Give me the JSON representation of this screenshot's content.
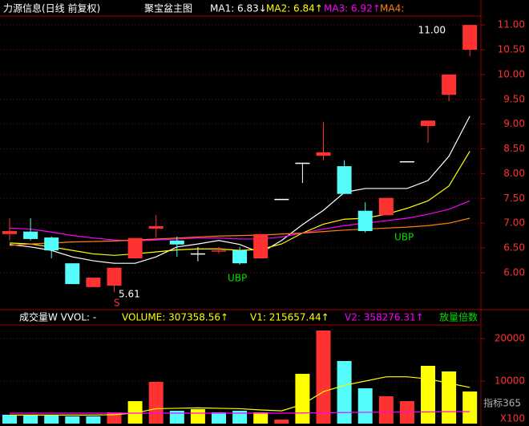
{
  "chart_data": [
    {
      "type": "candlestick",
      "title": "力源信息(日线 前复权)",
      "subtitle": "聚宝盆主图",
      "up_color": "#ff3232",
      "down_color": "#54fcfc",
      "flat_color": "#ffffff",
      "open": [
        6.78,
        6.83,
        6.71,
        6.19,
        5.71,
        5.74,
        6.29,
        6.89,
        6.65,
        6.39,
        6.44,
        6.45,
        6.29,
        7.49,
        8.22,
        8.36,
        8.15,
        7.25,
        7.16,
        8.25,
        8.96,
        9.59,
        10.5
      ],
      "high": [
        7.1,
        7.1,
        6.73,
        6.19,
        5.9,
        6.1,
        6.7,
        7.16,
        6.73,
        6.52,
        6.52,
        6.52,
        6.78,
        7.49,
        8.22,
        9.04,
        8.27,
        7.42,
        7.51,
        8.25,
        9.07,
        10.0,
        11.0
      ],
      "low": [
        6.65,
        6.65,
        6.29,
        5.77,
        5.71,
        5.61,
        6.29,
        6.71,
        6.32,
        6.23,
        6.39,
        6.16,
        6.29,
        7.49,
        7.81,
        8.27,
        7.59,
        6.81,
        7.16,
        8.25,
        8.62,
        9.46,
        10.37
      ],
      "close": [
        6.84,
        6.68,
        6.45,
        5.77,
        5.9,
        6.1,
        6.7,
        6.94,
        6.57,
        6.39,
        6.45,
        6.19,
        6.78,
        7.49,
        8.22,
        8.43,
        7.59,
        6.84,
        7.51,
        8.25,
        9.07,
        10.0,
        11.0
      ],
      "series": [
        {
          "name": "MA1: 6.83↓",
          "color": "#ffffff",
          "values": [
            6.57,
            6.52,
            6.45,
            6.32,
            6.24,
            6.19,
            6.19,
            6.32,
            6.52,
            6.58,
            6.65,
            6.57,
            6.4,
            6.65,
            6.97,
            7.26,
            7.62,
            7.7,
            7.7,
            7.7,
            7.86,
            8.35,
            9.16
          ]
        },
        {
          "name": "MA2: 6.84↑",
          "color": "#ffff00",
          "values": [
            6.6,
            6.58,
            6.52,
            6.45,
            6.38,
            6.35,
            6.38,
            6.42,
            6.46,
            6.48,
            6.48,
            6.45,
            6.47,
            6.58,
            6.8,
            6.98,
            7.08,
            7.1,
            7.18,
            7.3,
            7.45,
            7.75,
            8.45
          ]
        },
        {
          "name": "MA3: 6.92↑",
          "color": "#ff00ff",
          "values": [
            6.9,
            6.88,
            6.82,
            6.75,
            6.7,
            6.66,
            6.64,
            6.66,
            6.68,
            6.7,
            6.7,
            6.68,
            6.68,
            6.72,
            6.8,
            6.88,
            6.95,
            7.0,
            7.05,
            7.1,
            7.18,
            7.28,
            7.45
          ]
        },
        {
          "name": "MA4:",
          "color": "#ff8000",
          "values": [
            6.55,
            6.58,
            6.6,
            6.62,
            6.63,
            6.64,
            6.66,
            6.68,
            6.7,
            6.72,
            6.74,
            6.75,
            6.76,
            6.78,
            6.8,
            6.83,
            6.86,
            6.88,
            6.9,
            6.92,
            6.95,
            7.0,
            7.1
          ]
        }
      ],
      "annotations": [
        "5.61",
        "11.00",
        "UBP",
        "UBP",
        "S"
      ],
      "ylim": [
        5.27,
        11.18
      ],
      "yticks": [
        {
          "value": 6,
          "label": "6.00"
        },
        {
          "value": 6.5,
          "label": "6.50"
        },
        {
          "value": 7,
          "label": "7.00"
        },
        {
          "value": 7.5,
          "label": "7.50"
        },
        {
          "value": 8,
          "label": "8.00"
        },
        {
          "value": 8.5,
          "label": "8.50"
        },
        {
          "value": 9,
          "label": "9.00"
        },
        {
          "value": 9.5,
          "label": "9.50"
        },
        {
          "value": 10,
          "label": "10.00"
        },
        {
          "value": 10.5,
          "label": "10.50"
        },
        {
          "value": 11,
          "label": "11.00"
        }
      ],
      "grid": true
    },
    {
      "type": "bar",
      "title": "成交量W VVOL: -",
      "volume_label": "VOLUME: 307358.56↑",
      "extra_label": "放量倍数",
      "values": [
        2080,
        2080,
        2080,
        1700,
        1700,
        2640,
        5280,
        9810,
        3020,
        3400,
        2640,
        3020,
        2640,
        940,
        11700,
        21890,
        14720,
        8300,
        6415,
        5280,
        13580,
        12260,
        7550
      ],
      "colors": [
        "#54fcfc",
        "#54fcfc",
        "#54fcfc",
        "#54fcfc",
        "#54fcfc",
        "#ff3232",
        "#ffff00",
        "#ff3232",
        "#54fcfc",
        "#ffff00",
        "#54fcfc",
        "#54fcfc",
        "#ffff00",
        "#ff3232",
        "#ffff00",
        "#ff3232",
        "#54fcfc",
        "#54fcfc",
        "#ff3232",
        "#ff3232",
        "#ffff00",
        "#ffff00",
        "#ffff00"
      ],
      "series": [
        {
          "name": "V1: 215657.44↑",
          "color": "#ffff00",
          "values": [
            2000,
            2000,
            2000,
            2000,
            2000,
            2100,
            2500,
            3500,
            3600,
            3700,
            3600,
            3500,
            3200,
            3000,
            4500,
            7500,
            9000,
            10000,
            11000,
            11000,
            10500,
            9500,
            8500
          ]
        },
        {
          "name": "V2: 358276.31↑",
          "color": "#ff00ff",
          "values": [
            2450,
            2450,
            2450,
            2450,
            2450,
            2450,
            2450,
            2450,
            2450,
            2450,
            2450,
            2450,
            2450,
            2450,
            2500,
            2550,
            2600,
            2650,
            2700,
            2700,
            2750,
            2800,
            2800
          ]
        }
      ],
      "unit": "X100",
      "watermark": "指标365",
      "ylim": [
        0,
        23200
      ],
      "yticks": [
        10000,
        20000
      ],
      "grid": true
    }
  ]
}
